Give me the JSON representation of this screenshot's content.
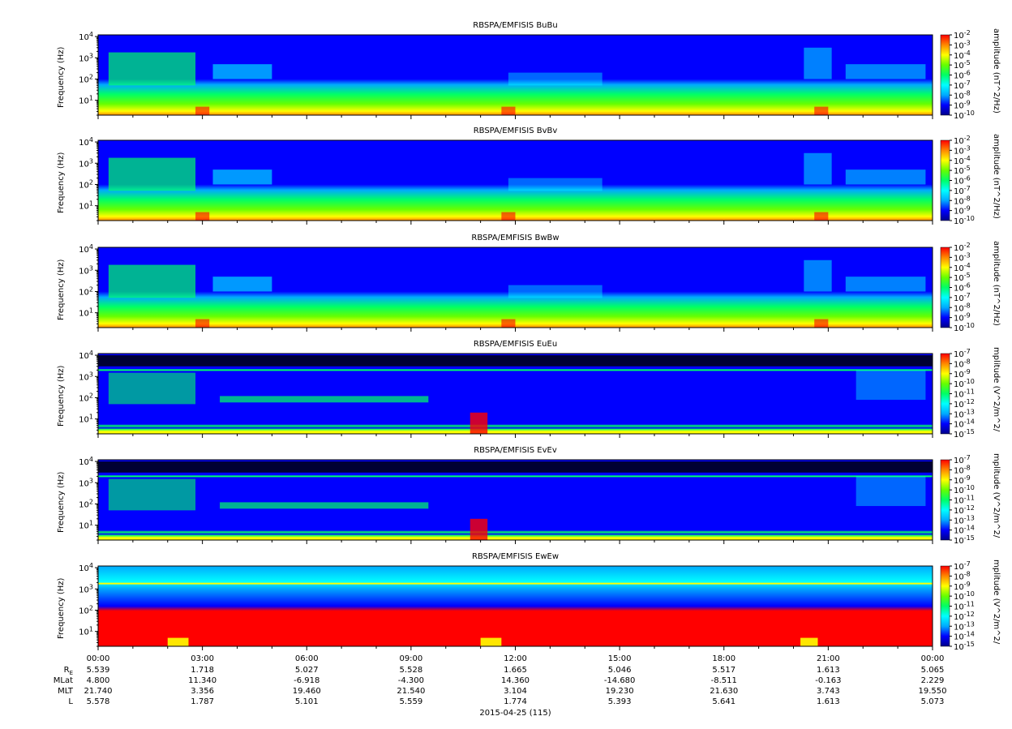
{
  "chart_data": [
    {
      "type": "heatmap",
      "title": "RBSPA/EMFISIS  BuBu",
      "ylabel": "Frequency (Hz)",
      "yscale": "log",
      "ylim": [
        2,
        12000
      ],
      "ytick_values": [
        10,
        100,
        1000,
        10000
      ],
      "ytick_labels": [
        "10^1",
        "10^2",
        "10^3",
        "10^4"
      ],
      "colorbar_label": "amplitude (nT^2/Hz)",
      "colorbar_ticks": [
        "10^-2",
        "10^-3",
        "10^-4",
        "10^-5",
        "10^-6",
        "10^-7",
        "10^-8",
        "10^-9",
        "10^-10"
      ],
      "colorbar_range_exp": [
        -10,
        -2
      ],
      "kind": "magnetic"
    },
    {
      "type": "heatmap",
      "title": "RBSPA/EMFISIS  BvBv",
      "ylabel": "Frequency (Hz)",
      "yscale": "log",
      "ylim": [
        2,
        12000
      ],
      "ytick_values": [
        10,
        100,
        1000,
        10000
      ],
      "ytick_labels": [
        "10^1",
        "10^2",
        "10^3",
        "10^4"
      ],
      "colorbar_label": "amplitude (nT^2/Hz)",
      "colorbar_ticks": [
        "10^-2",
        "10^-3",
        "10^-4",
        "10^-5",
        "10^-6",
        "10^-7",
        "10^-8",
        "10^-9",
        "10^-10"
      ],
      "colorbar_range_exp": [
        -10,
        -2
      ],
      "kind": "magnetic"
    },
    {
      "type": "heatmap",
      "title": "RBSPA/EMFISIS  BwBw",
      "ylabel": "Frequency (Hz)",
      "yscale": "log",
      "ylim": [
        2,
        12000
      ],
      "ytick_values": [
        10,
        100,
        1000,
        10000
      ],
      "ytick_labels": [
        "10^1",
        "10^2",
        "10^3",
        "10^4"
      ],
      "colorbar_label": "amplitude (nT^2/Hz)",
      "colorbar_ticks": [
        "10^-2",
        "10^-3",
        "10^-4",
        "10^-5",
        "10^-6",
        "10^-7",
        "10^-8",
        "10^-9",
        "10^-10"
      ],
      "colorbar_range_exp": [
        -10,
        -2
      ],
      "kind": "magnetic"
    },
    {
      "type": "heatmap",
      "title": "RBSPA/EMFISIS  EuEu",
      "ylabel": "Frequency (Hz)",
      "yscale": "log",
      "ylim": [
        2,
        12000
      ],
      "ytick_values": [
        10,
        100,
        1000,
        10000
      ],
      "ytick_labels": [
        "10^1",
        "10^2",
        "10^3",
        "10^4"
      ],
      "colorbar_label": "mplitude (V^2/m^2/",
      "colorbar_ticks": [
        "10^-7",
        "10^-8",
        "10^-9",
        "10^-10",
        "10^-11",
        "10^-12",
        "10^-13",
        "10^-14",
        "10^-15"
      ],
      "colorbar_range_exp": [
        -15,
        -7
      ],
      "kind": "electric"
    },
    {
      "type": "heatmap",
      "title": "RBSPA/EMFISIS  EvEv",
      "ylabel": "Frequency (Hz)",
      "yscale": "log",
      "ylim": [
        2,
        12000
      ],
      "ytick_values": [
        10,
        100,
        1000,
        10000
      ],
      "ytick_labels": [
        "10^1",
        "10^2",
        "10^3",
        "10^4"
      ],
      "colorbar_label": "mplitude (V^2/m^2/",
      "colorbar_ticks": [
        "10^-7",
        "10^-8",
        "10^-9",
        "10^-10",
        "10^-11",
        "10^-12",
        "10^-13",
        "10^-14",
        "10^-15"
      ],
      "colorbar_range_exp": [
        -15,
        -7
      ],
      "kind": "electric"
    },
    {
      "type": "heatmap",
      "title": "RBSPA/EMFISIS  EwEw",
      "ylabel": "Frequency (Hz)",
      "yscale": "log",
      "ylim": [
        2,
        12000
      ],
      "ytick_values": [
        10,
        100,
        1000,
        10000
      ],
      "ytick_labels": [
        "10^1",
        "10^2",
        "10^3",
        "10^4"
      ],
      "colorbar_label": "mplitude (V^2/m^2/",
      "colorbar_ticks": [
        "10^-7",
        "10^-8",
        "10^-9",
        "10^-10",
        "10^-11",
        "10^-12",
        "10^-13",
        "10^-14",
        "10^-15"
      ],
      "colorbar_range_exp": [
        -15,
        -7
      ],
      "kind": "electric_w"
    }
  ],
  "xaxis": {
    "range_hours": [
      0,
      24
    ],
    "tick_labels": [
      "00:00",
      "03:00",
      "06:00",
      "09:00",
      "12:00",
      "15:00",
      "18:00",
      "21:00",
      "00:00"
    ],
    "date_label": "2015-04-25 (115)"
  },
  "ephemeris": {
    "row_labels": [
      "RE",
      "MLat",
      "MLT",
      "L"
    ],
    "rows": [
      [
        "5.539",
        "1.718",
        "5.027",
        "5.528",
        "1.665",
        "5.046",
        "5.517",
        "1.613",
        "5.065"
      ],
      [
        "4.800",
        "11.340",
        "-6.918",
        "-4.300",
        "14.360",
        "-14.680",
        "-8.511",
        "-0.163",
        "2.229"
      ],
      [
        "21.740",
        "3.356",
        "19.460",
        "21.540",
        "3.104",
        "19.230",
        "21.630",
        "3.743",
        "19.550"
      ],
      [
        "5.578",
        "1.787",
        "5.101",
        "5.559",
        "1.774",
        "5.393",
        "5.641",
        "1.613",
        "5.073"
      ]
    ]
  },
  "colors": {
    "colormap": [
      "#00008b",
      "#0000ff",
      "#00aaff",
      "#00ffff",
      "#00ff66",
      "#66ff00",
      "#ffff00",
      "#ff8800",
      "#ff0000"
    ]
  }
}
